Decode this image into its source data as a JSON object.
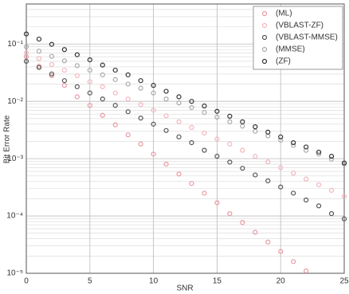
{
  "chart_data": {
    "type": "scatter",
    "xlabel": "SNR",
    "ylabel": "Bit Error Rate",
    "x": [
      0,
      1,
      2,
      3,
      4,
      5,
      6,
      7,
      8,
      9,
      10,
      11,
      12,
      13,
      14,
      15,
      16,
      17,
      18,
      19,
      20,
      21,
      22,
      23,
      24,
      25
    ],
    "xlim": [
      0,
      25
    ],
    "xticks": [
      0,
      5,
      10,
      15,
      20,
      25
    ],
    "ylim": [
      1e-05,
      0.5
    ],
    "yscale": "log",
    "yticks": [
      {
        "value": 1e-05,
        "label": "10⁻⁵"
      },
      {
        "value": 0.0001,
        "label": "10⁻⁴"
      },
      {
        "value": 0.001,
        "label": "10⁻³"
      },
      {
        "value": 0.01,
        "label": "10⁻²"
      },
      {
        "value": 0.1,
        "label": "10⁻¹"
      }
    ],
    "grid": true,
    "legend": "top-right",
    "series": [
      {
        "name": "(ML)",
        "color": "#e89aa4",
        "values": [
          0.06,
          0.041,
          0.028,
          0.019,
          0.012,
          0.0085,
          0.0057,
          0.0039,
          0.0026,
          0.0018,
          0.0012,
          0.0008,
          0.00054,
          0.00037,
          0.00025,
          0.00017,
          0.00011,
          7.7e-05,
          5.2e-05,
          3.5e-05,
          2.4e-05,
          1.6e-05,
          1.1e-05,
          null,
          null,
          null
        ]
      },
      {
        "name": "(VBLAST-ZF)",
        "color": "#f2b6bd",
        "values": [
          0.07,
          0.056,
          0.044,
          0.035,
          0.028,
          0.022,
          0.018,
          0.014,
          0.011,
          0.0088,
          0.007,
          0.0056,
          0.0044,
          0.0035,
          0.0028,
          0.0022,
          0.0018,
          0.0014,
          0.0011,
          0.00088,
          0.0007,
          0.00056,
          0.00044,
          0.00035,
          0.00028,
          0.00022
        ]
      },
      {
        "name": "(VBLAST-MMSE)",
        "color": "#555555",
        "values": [
          0.05,
          0.039,
          0.03,
          0.023,
          0.018,
          0.014,
          0.011,
          0.0085,
          0.0066,
          0.0051,
          0.004,
          0.0031,
          0.0024,
          0.0019,
          0.0014,
          0.0011,
          0.00087,
          0.00068,
          0.00052,
          0.00041,
          0.00032,
          0.00025,
          0.00019,
          0.00015,
          0.00011,
          8.9e-05
        ]
      },
      {
        "name": "(MMSE)",
        "color": "#aaaaaa",
        "values": [
          0.09,
          0.075,
          0.061,
          0.051,
          0.042,
          0.035,
          0.029,
          0.024,
          0.02,
          0.017,
          0.014,
          0.011,
          0.0094,
          0.0078,
          0.0064,
          0.0053,
          0.0044,
          0.0037,
          0.003,
          0.0025,
          0.0021,
          0.0017,
          0.0014,
          0.0012,
          0.00098,
          0.00081
        ]
      },
      {
        "name": "(ZF)",
        "color": "#333333",
        "values": [
          0.15,
          0.122,
          0.099,
          0.08,
          0.065,
          0.053,
          0.043,
          0.035,
          0.029,
          0.023,
          0.019,
          0.015,
          0.012,
          0.01,
          0.0083,
          0.0067,
          0.0055,
          0.0044,
          0.0036,
          0.0029,
          0.0024,
          0.0019,
          0.0016,
          0.0013,
          0.0011,
          0.00084
        ]
      }
    ]
  }
}
